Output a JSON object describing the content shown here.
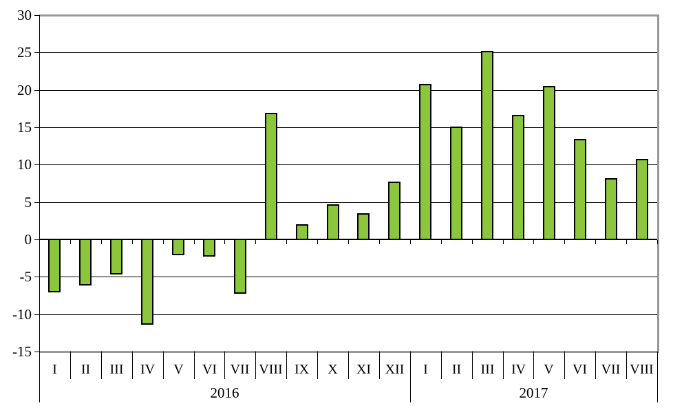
{
  "chart_data": {
    "type": "bar",
    "title": "",
    "legend": "none",
    "grid": true,
    "ylim": [
      -15,
      30
    ],
    "y_ticks": [
      30,
      25,
      20,
      15,
      10,
      5,
      0,
      -5,
      -10,
      -15
    ],
    "groups": [
      {
        "label": "2016",
        "categories": [
          "I",
          "II",
          "III",
          "IV",
          "V",
          "VI",
          "VII",
          "VIII",
          "IX",
          "X",
          "XI",
          "XII"
        ],
        "values": [
          -7.1,
          -6.2,
          -4.7,
          -11.4,
          -2.1,
          -2.3,
          -7.3,
          16.9,
          2.0,
          4.7,
          3.5,
          7.7
        ]
      },
      {
        "label": "2017",
        "categories": [
          "I",
          "II",
          "III",
          "IV",
          "V",
          "VI",
          "VII",
          "VIII"
        ],
        "values": [
          20.8,
          15.1,
          25.2,
          16.7,
          20.5,
          13.4,
          8.2,
          10.8
        ]
      }
    ],
    "colors": {
      "bar_fill": "#8CC63C",
      "bar_border": "#000000",
      "plot_frame": "#999999",
      "gridline": "#000000",
      "text": "#000000"
    }
  }
}
